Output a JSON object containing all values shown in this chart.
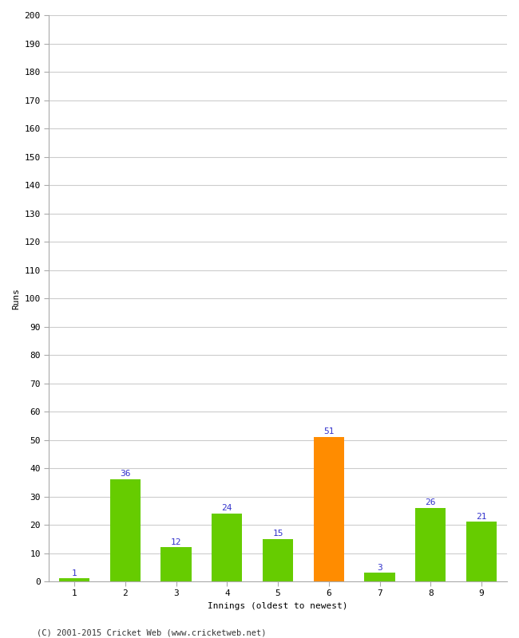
{
  "xlabel": "Innings (oldest to newest)",
  "ylabel": "Runs",
  "categories": [
    "1",
    "2",
    "3",
    "4",
    "5",
    "6",
    "7",
    "8",
    "9"
  ],
  "values": [
    1,
    36,
    12,
    24,
    15,
    51,
    3,
    26,
    21
  ],
  "bar_colors": [
    "#66cc00",
    "#66cc00",
    "#66cc00",
    "#66cc00",
    "#66cc00",
    "#ff8c00",
    "#66cc00",
    "#66cc00",
    "#66cc00"
  ],
  "label_color": "#3333cc",
  "ylim": [
    0,
    200
  ],
  "yticks": [
    0,
    10,
    20,
    30,
    40,
    50,
    60,
    70,
    80,
    90,
    100,
    110,
    120,
    130,
    140,
    150,
    160,
    170,
    180,
    190,
    200
  ],
  "background_color": "#ffffff",
  "grid_color": "#cccccc",
  "footer": "(C) 2001-2015 Cricket Web (www.cricketweb.net)",
  "axis_label_fontsize": 8,
  "tick_fontsize": 8,
  "value_label_fontsize": 8,
  "footer_fontsize": 7.5
}
